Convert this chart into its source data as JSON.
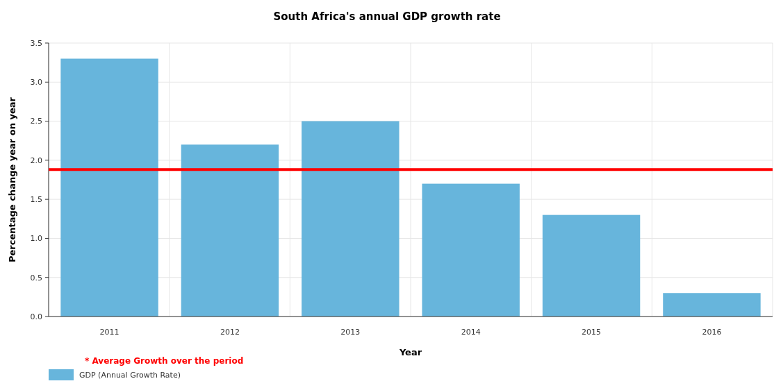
{
  "chart_data": {
    "type": "bar",
    "title": "South Africa's annual GDP growth rate",
    "xlabel": "Year",
    "ylabel": "Percentage change year on year",
    "categories": [
      "2011",
      "2012",
      "2013",
      "2014",
      "2015",
      "2016"
    ],
    "series": [
      {
        "name": "GDP (Annual Growth Rate)",
        "color": "#67b5dc",
        "values": [
          3.3,
          2.2,
          2.5,
          1.7,
          1.3,
          0.3
        ]
      }
    ],
    "ylim": [
      0,
      3.5
    ],
    "yticks": [
      {
        "value": 0,
        "label": "0.0"
      },
      {
        "value": 0.5,
        "label": "0.5"
      },
      {
        "value": 1,
        "label": "1.0"
      },
      {
        "value": 1.5,
        "label": "1.5"
      },
      {
        "value": 2,
        "label": "2.0"
      },
      {
        "value": 2.5,
        "label": "2.5"
      },
      {
        "value": 3,
        "label": "3.0"
      },
      {
        "value": 3.5,
        "label": "3.5"
      }
    ],
    "ref_lines": [
      {
        "axis": "y",
        "value": 1.88,
        "label": "* Average Growth over the period",
        "color": "#ff0000"
      }
    ],
    "grid": true,
    "legend": "bottom left"
  }
}
